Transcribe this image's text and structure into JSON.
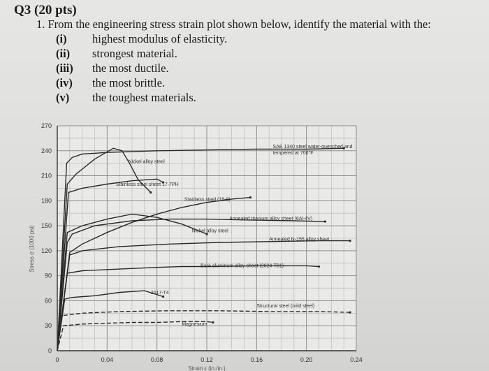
{
  "question": {
    "label": "Q3",
    "points": "(20 pts)",
    "number": "1.",
    "stem": "From the engineering stress strain plot shown below, identify the material with the:",
    "items": [
      {
        "num": "(i)",
        "text": "highest modulus of elasticity."
      },
      {
        "num": "(ii)",
        "text": "strongest material."
      },
      {
        "num": "(iii)",
        "text": "the most ductile."
      },
      {
        "num": "(iv)",
        "text": "the most brittle."
      },
      {
        "num": "(v)",
        "text": "the toughest materials."
      }
    ]
  },
  "chart_data": {
    "type": "line",
    "xlabel": "Strain ε (in./in.)",
    "ylabel": "Stress σ (1000 psi)",
    "xlim": [
      0,
      0.24
    ],
    "ylim": [
      0,
      270
    ],
    "x_ticks": [
      {
        "v": 0,
        "label": "0"
      },
      {
        "v": 0.04,
        "label": "0.04"
      },
      {
        "v": 0.08,
        "label": "0.08"
      },
      {
        "v": 0.12,
        "label": "0.12"
      },
      {
        "v": 0.16,
        "label": "0.16"
      },
      {
        "v": 0.2,
        "label": "0.20"
      },
      {
        "v": 0.24,
        "label": "0.24"
      }
    ],
    "y_ticks": [
      {
        "v": 0,
        "label": "0"
      },
      {
        "v": 30,
        "label": "30"
      },
      {
        "v": 60,
        "label": "60"
      },
      {
        "v": 90,
        "label": "90"
      },
      {
        "v": 120,
        "label": "120"
      },
      {
        "v": 150,
        "label": "150"
      },
      {
        "v": 180,
        "label": "180"
      },
      {
        "v": 210,
        "label": "210"
      },
      {
        "v": 240,
        "label": "240"
      },
      {
        "v": 270,
        "label": "270"
      }
    ],
    "grid": true,
    "series": [
      {
        "name": "SAE 1340 steel water-quenched and tempered at 700°F",
        "dash": "",
        "label_at": [
          0.173,
          243
        ],
        "label_lines": [
          "SAE 1340 steel water-quenched and",
          "tempered at 700°F"
        ],
        "x": [
          0,
          0.0075,
          0.012,
          0.02,
          0.04,
          0.08,
          0.12,
          0.16,
          0.2,
          0.23
        ],
        "y": [
          0,
          225,
          232,
          236,
          238,
          240,
          241,
          242,
          242,
          243
        ]
      },
      {
        "name": "Nickel alloy steel",
        "dash": "",
        "label_at": [
          0.057,
          225
        ],
        "x": [
          0,
          0.008,
          0.015,
          0.03,
          0.045,
          0.052,
          0.058,
          0.065,
          0.075
        ],
        "y": [
          0,
          200,
          212,
          230,
          243,
          240,
          225,
          205,
          190
        ]
      },
      {
        "name": "Stainless steel sheet 17-7PH",
        "dash": "",
        "label_at": [
          0.047,
          198
        ],
        "x": [
          0,
          0.009,
          0.02,
          0.04,
          0.06,
          0.08,
          0.085
        ],
        "y": [
          0,
          190,
          195,
          200,
          204,
          206,
          202
        ]
      },
      {
        "name": "Stainless steel (18-8)",
        "dash": "",
        "label_at": [
          0.102,
          180
        ],
        "x": [
          0,
          0.01,
          0.02,
          0.04,
          0.06,
          0.08,
          0.1,
          0.12,
          0.14,
          0.155
        ],
        "y": [
          0,
          118,
          128,
          142,
          154,
          164,
          172,
          178,
          182,
          184
        ]
      },
      {
        "name": "Annealed titanium alloy sheet (6Al-4V)",
        "dash": "",
        "label_at": [
          0.138,
          157
        ],
        "x": [
          0,
          0.008,
          0.012,
          0.03,
          0.06,
          0.09,
          0.12,
          0.15,
          0.19,
          0.215
        ],
        "y": [
          0,
          130,
          140,
          150,
          156,
          158,
          158,
          157,
          156,
          155
        ]
      },
      {
        "name": "Nickel alloy steel",
        "dash": "",
        "label_at": [
          0.108,
          142
        ],
        "x": [
          0,
          0.008,
          0.02,
          0.04,
          0.06,
          0.08,
          0.1,
          0.12
        ],
        "y": [
          0,
          142,
          150,
          158,
          164,
          160,
          152,
          140
        ]
      },
      {
        "name": "Annealed N-155 alloy sheet",
        "dash": "",
        "label_at": [
          0.17,
          132
        ],
        "x": [
          0,
          0.01,
          0.02,
          0.05,
          0.09,
          0.13,
          0.17,
          0.21,
          0.235
        ],
        "y": [
          0,
          115,
          120,
          125,
          128,
          130,
          131,
          132,
          132
        ]
      },
      {
        "name": "Bare aluminum alloy sheet (2024-T81)",
        "dash": "",
        "label_at": [
          0.115,
          100
        ],
        "x": [
          0,
          0.008,
          0.02,
          0.05,
          0.08,
          0.1,
          0.12,
          0.16,
          0.2,
          0.21
        ],
        "y": [
          0,
          93,
          96,
          98,
          100,
          101,
          101,
          102,
          102,
          101
        ]
      },
      {
        "name": "2017-T4",
        "dash": "",
        "label_at": [
          0.075,
          68
        ],
        "x": [
          0,
          0.006,
          0.012,
          0.03,
          0.05,
          0.07,
          0.085
        ],
        "y": [
          0,
          62,
          64,
          66,
          70,
          72,
          65
        ]
      },
      {
        "name": "Structural steel (mild steel)",
        "dash": "6 3",
        "label_at": [
          0.16,
          52
        ],
        "x": [
          0,
          0.003,
          0.02,
          0.05,
          0.09,
          0.13,
          0.17,
          0.21,
          0.235
        ],
        "y": [
          0,
          42,
          45,
          47,
          48,
          48,
          47,
          47,
          46
        ]
      },
      {
        "name": "Magnesium",
        "dash": "6 3",
        "label_at": [
          0.1,
          30
        ],
        "x": [
          0,
          0.005,
          0.02,
          0.04,
          0.06,
          0.08,
          0.1,
          0.12,
          0.125
        ],
        "y": [
          0,
          30,
          32,
          33,
          34,
          34,
          35,
          35,
          34
        ]
      }
    ]
  }
}
